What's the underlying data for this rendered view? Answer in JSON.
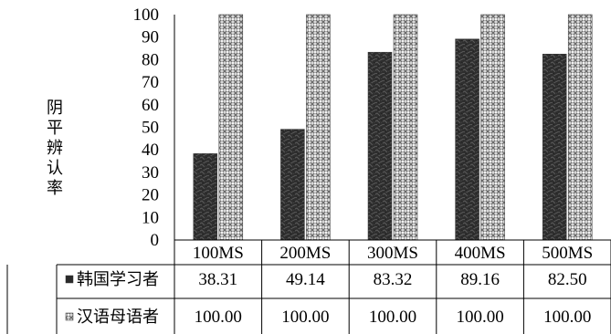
{
  "chart_data": {
    "type": "bar",
    "title": "",
    "xlabel": "",
    "ylabel": "阴平辨认率",
    "categories": [
      "100MS",
      "200MS",
      "300MS",
      "400MS",
      "500MS"
    ],
    "series": [
      {
        "name": "韩国学习者",
        "values": [
          38.31,
          49.14,
          83.32,
          89.16,
          82.5
        ],
        "display": [
          "38.31",
          "49.14",
          "83.32",
          "89.16",
          "82.50"
        ],
        "pattern": "dark-marble"
      },
      {
        "name": "汉语母语者",
        "values": [
          100.0,
          100.0,
          100.0,
          100.0,
          100.0
        ],
        "display": [
          "100.00",
          "100.00",
          "100.00",
          "100.00",
          "100.00"
        ],
        "pattern": "light-weave"
      }
    ],
    "ylim": [
      0,
      100
    ],
    "yticks": [
      0,
      10,
      20,
      30,
      40,
      50,
      60,
      70,
      80,
      90,
      100
    ],
    "grid": false,
    "legend": "data-table"
  }
}
